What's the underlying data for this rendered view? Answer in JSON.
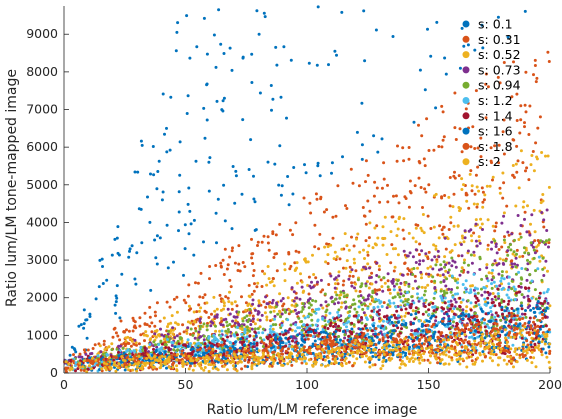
{
  "chart_data": {
    "type": "scatter",
    "title": "",
    "xlabel": "Ratio lum/LM reference image",
    "ylabel": "Ratio lum/LM tone-mapped image",
    "xlim": [
      0,
      200
    ],
    "ylim": [
      0,
      9750
    ],
    "xticks": [
      0,
      50,
      100,
      150,
      200
    ],
    "xtick_labels": [
      "0",
      "50",
      "100",
      "150",
      "200"
    ],
    "yticks": [
      0,
      1000,
      2000,
      3000,
      4000,
      5000,
      6000,
      7000,
      8000,
      9000
    ],
    "ytick_labels": [
      "0",
      "1000",
      "2000",
      "3000",
      "4000",
      "5000",
      "6000",
      "7000",
      "8000",
      "9000"
    ],
    "grid": false,
    "legend_position": "top-right",
    "series": [
      {
        "name": "s: 0.1",
        "color": "#0072bd",
        "slope_range": [
          45,
          200
        ]
      },
      {
        "name": "s: 0.31",
        "color": "#d95319",
        "slope_range": [
          14,
          45
        ]
      },
      {
        "name": "s: 0.52",
        "color": "#edb120",
        "slope_range": [
          8,
          30
        ]
      },
      {
        "name": "s: 0.73",
        "color": "#7e2f8e",
        "slope_range": [
          5,
          22
        ]
      },
      {
        "name": "s: 0.94",
        "color": "#77ac30",
        "slope_range": [
          4,
          18
        ]
      },
      {
        "name": "s: 1.2",
        "color": "#4dbeee",
        "slope_range": [
          3,
          14
        ]
      },
      {
        "name": "s: 1.4",
        "color": "#a2142f",
        "slope_range": [
          2,
          11
        ]
      },
      {
        "name": "s: 1.6",
        "color": "#0072bd",
        "slope_range": [
          1.5,
          9
        ]
      },
      {
        "name": "s: 1.8",
        "color": "#d95319",
        "slope_range": [
          1,
          7
        ]
      },
      {
        "name": "s: 2",
        "color": "#edb120",
        "slope_range": [
          0.3,
          5
        ]
      }
    ]
  }
}
